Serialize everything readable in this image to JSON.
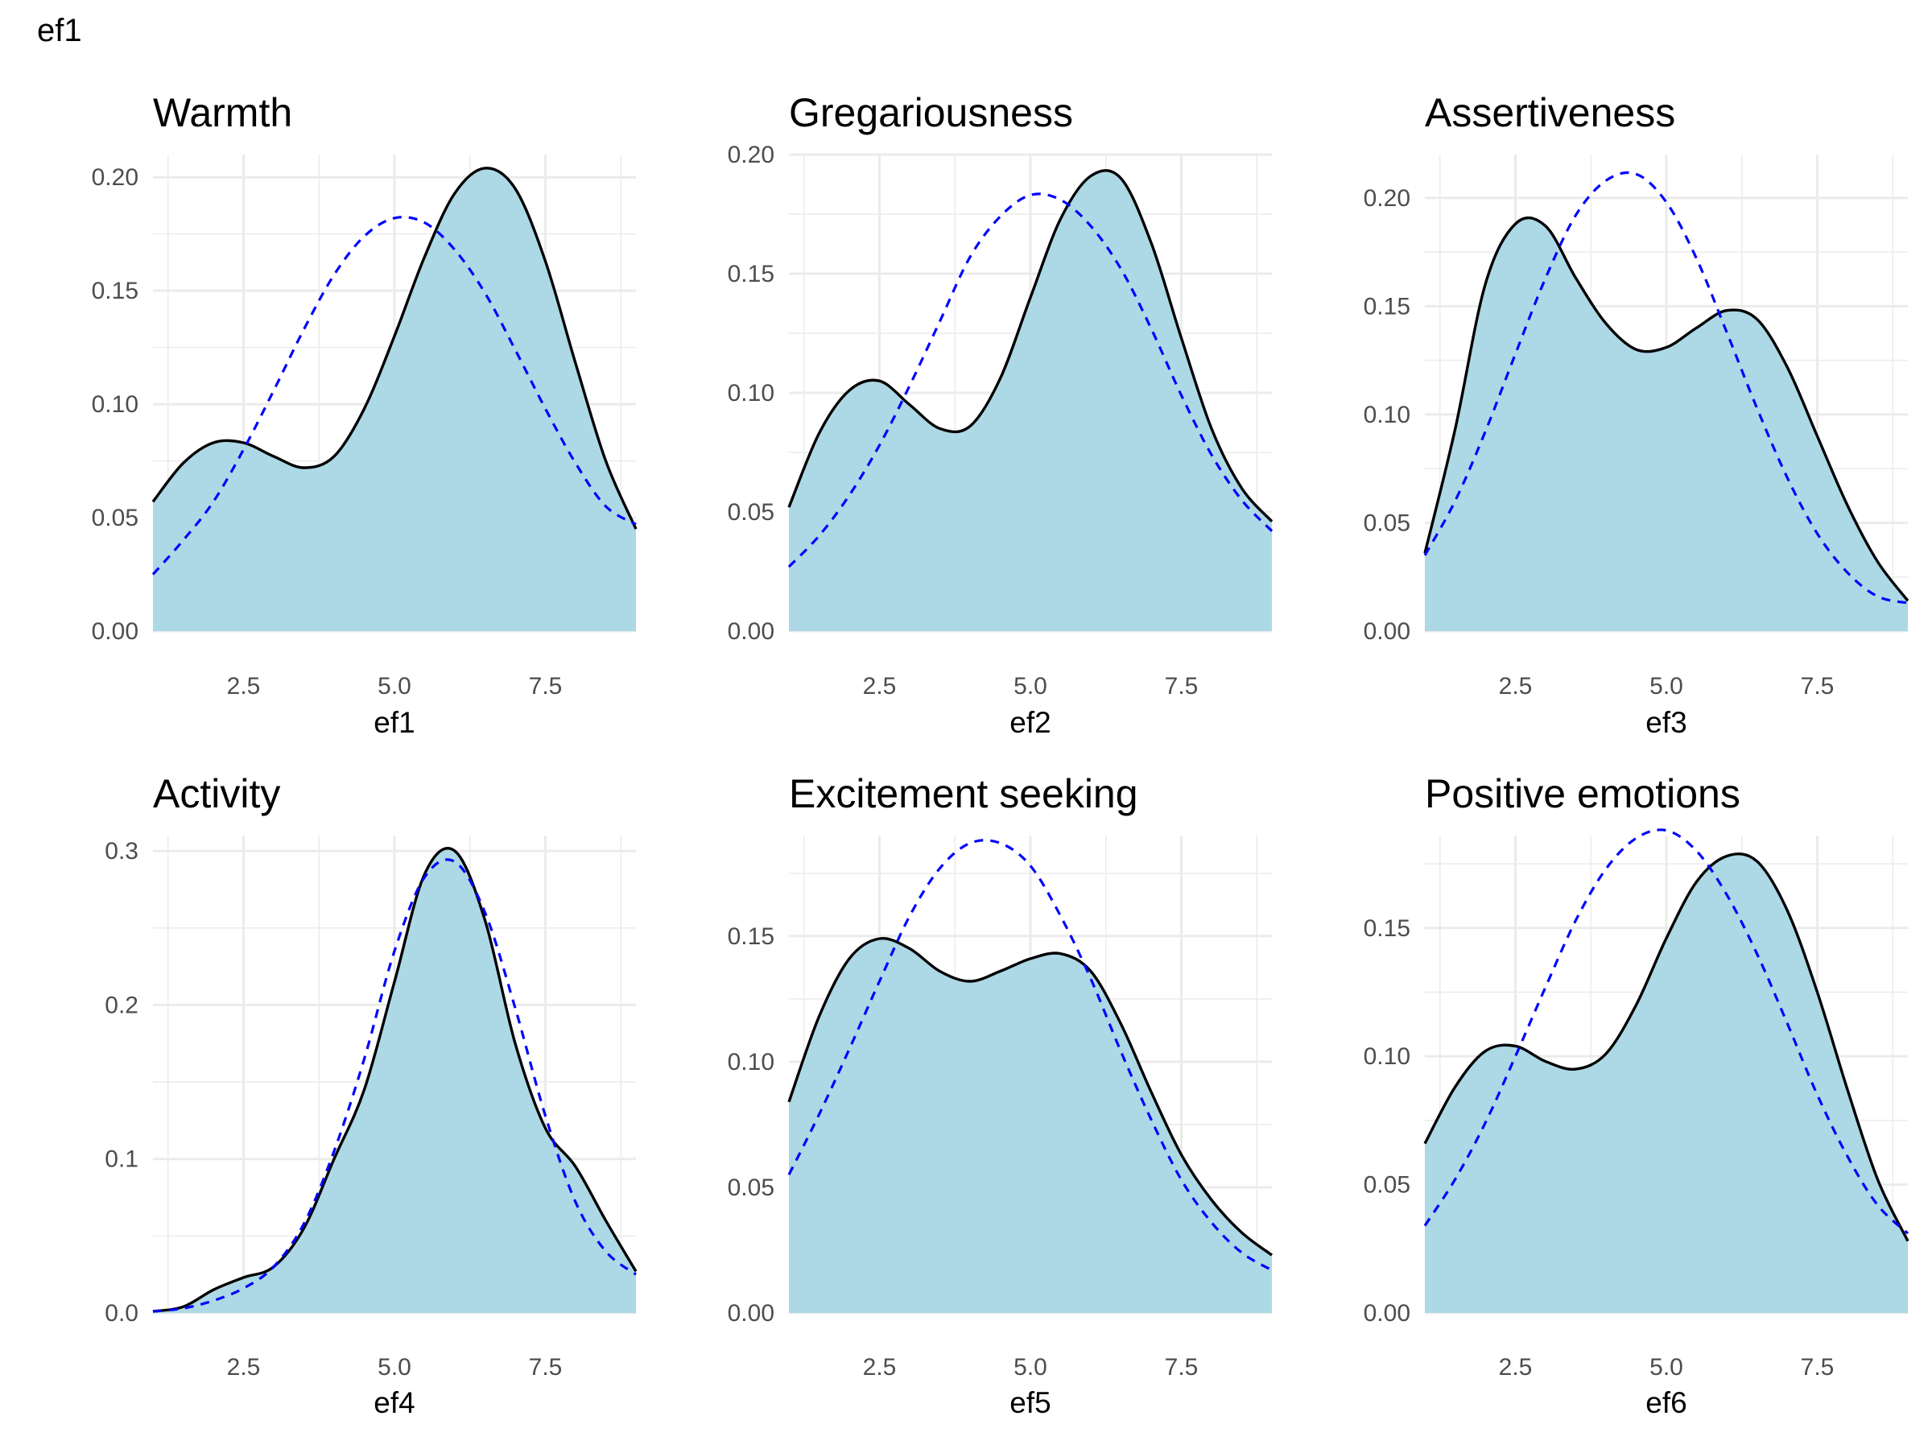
{
  "page": {
    "title": "ef1"
  },
  "style": {
    "fill_color": "#ADD8E6",
    "density_line_color": "#000000",
    "normal_line_color": "#0000FF",
    "grid_color": "#EBEBEB"
  },
  "chart_data": [
    {
      "type": "area",
      "title": "Warmth",
      "xlabel": "ef1",
      "xlim": [
        1,
        9
      ],
      "ylim": [
        0,
        0.21
      ],
      "xticks": [
        2.5,
        5.0,
        7.5
      ],
      "xtick_labels": [
        "2.5",
        "5.0",
        "7.5"
      ],
      "yticks": [
        0,
        0.05,
        0.1,
        0.15,
        0.2
      ],
      "ytick_labels": [
        "0.00",
        "0.05",
        "0.10",
        "0.15",
        "0.20"
      ],
      "series": [
        {
          "style": "solid area",
          "x": [
            1.0,
            1.5,
            2.0,
            2.5,
            3.0,
            3.5,
            4.0,
            4.5,
            5.0,
            5.5,
            6.0,
            6.5,
            7.0,
            7.5,
            8.0,
            8.5,
            9.0
          ],
          "y": [
            0.057,
            0.074,
            0.083,
            0.083,
            0.077,
            0.072,
            0.077,
            0.098,
            0.13,
            0.165,
            0.193,
            0.204,
            0.195,
            0.163,
            0.118,
            0.075,
            0.045
          ]
        },
        {
          "style": "dashed",
          "x": [
            1.0,
            1.5,
            2.0,
            2.5,
            3.0,
            3.5,
            4.0,
            4.5,
            5.0,
            5.5,
            6.0,
            6.5,
            7.0,
            7.5,
            8.0,
            8.5,
            9.0
          ],
          "y": [
            0.025,
            0.04,
            0.057,
            0.08,
            0.106,
            0.133,
            0.157,
            0.174,
            0.182,
            0.18,
            0.168,
            0.149,
            0.124,
            0.098,
            0.074,
            0.055,
            0.047
          ]
        }
      ]
    },
    {
      "type": "area",
      "title": "Gregariousness",
      "xlabel": "ef2",
      "xlim": [
        1,
        9
      ],
      "ylim": [
        0,
        0.2
      ],
      "xticks": [
        2.5,
        5.0,
        7.5
      ],
      "xtick_labels": [
        "2.5",
        "5.0",
        "7.5"
      ],
      "yticks": [
        0,
        0.05,
        0.1,
        0.15,
        0.2
      ],
      "ytick_labels": [
        "0.00",
        "0.05",
        "0.10",
        "0.15",
        "0.20"
      ],
      "series": [
        {
          "style": "solid area",
          "x": [
            1.0,
            1.5,
            2.0,
            2.5,
            3.0,
            3.5,
            4.0,
            4.5,
            5.0,
            5.5,
            6.0,
            6.5,
            7.0,
            7.5,
            8.0,
            8.5,
            9.0
          ],
          "y": [
            0.052,
            0.083,
            0.101,
            0.105,
            0.095,
            0.085,
            0.086,
            0.106,
            0.14,
            0.173,
            0.191,
            0.19,
            0.163,
            0.123,
            0.085,
            0.06,
            0.046
          ]
        },
        {
          "style": "dashed",
          "x": [
            1.0,
            1.5,
            2.0,
            2.5,
            3.0,
            3.5,
            4.0,
            4.5,
            5.0,
            5.5,
            6.0,
            6.5,
            7.0,
            7.5,
            8.0,
            8.5,
            9.0
          ],
          "y": [
            0.027,
            0.04,
            0.057,
            0.078,
            0.103,
            0.13,
            0.157,
            0.174,
            0.183,
            0.181,
            0.17,
            0.152,
            0.127,
            0.099,
            0.074,
            0.055,
            0.042
          ]
        }
      ]
    },
    {
      "type": "area",
      "title": "Assertiveness",
      "xlabel": "ef3",
      "xlim": [
        1,
        9
      ],
      "ylim": [
        0,
        0.22
      ],
      "xticks": [
        2.5,
        5.0,
        7.5
      ],
      "xtick_labels": [
        "2.5",
        "5.0",
        "7.5"
      ],
      "yticks": [
        0,
        0.05,
        0.1,
        0.15,
        0.2
      ],
      "ytick_labels": [
        "0.00",
        "0.05",
        "0.10",
        "0.15",
        "0.20"
      ],
      "series": [
        {
          "style": "solid area",
          "x": [
            1.0,
            1.5,
            2.0,
            2.5,
            3.0,
            3.5,
            4.0,
            4.5,
            5.0,
            5.5,
            6.0,
            6.5,
            7.0,
            7.5,
            8.0,
            8.5,
            9.0
          ],
          "y": [
            0.036,
            0.093,
            0.16,
            0.188,
            0.187,
            0.163,
            0.142,
            0.13,
            0.131,
            0.14,
            0.148,
            0.144,
            0.122,
            0.09,
            0.058,
            0.032,
            0.014
          ]
        },
        {
          "style": "dashed",
          "x": [
            1.0,
            1.5,
            2.0,
            2.5,
            3.0,
            3.5,
            4.0,
            4.5,
            5.0,
            5.5,
            6.0,
            6.5,
            7.0,
            7.5,
            8.0,
            8.5,
            9.0
          ],
          "y": [
            0.035,
            0.06,
            0.092,
            0.128,
            0.163,
            0.192,
            0.208,
            0.211,
            0.198,
            0.172,
            0.138,
            0.103,
            0.071,
            0.045,
            0.027,
            0.016,
            0.013
          ]
        }
      ]
    },
    {
      "type": "area",
      "title": "Activity",
      "xlabel": "ef4",
      "xlim": [
        1,
        9
      ],
      "ylim": [
        0,
        0.31
      ],
      "xticks": [
        2.5,
        5.0,
        7.5
      ],
      "xtick_labels": [
        "2.5",
        "5.0",
        "7.5"
      ],
      "yticks": [
        0,
        0.1,
        0.2,
        0.3
      ],
      "ytick_labels": [
        "0.0",
        "0.1",
        "0.2",
        "0.3"
      ],
      "series": [
        {
          "style": "solid area",
          "x": [
            1.0,
            1.5,
            2.0,
            2.5,
            3.0,
            3.5,
            4.0,
            4.5,
            5.0,
            5.5,
            6.0,
            6.5,
            7.0,
            7.5,
            8.0,
            8.5,
            9.0
          ],
          "y": [
            0.001,
            0.004,
            0.015,
            0.023,
            0.03,
            0.055,
            0.1,
            0.145,
            0.215,
            0.285,
            0.3,
            0.255,
            0.175,
            0.12,
            0.095,
            0.06,
            0.027
          ]
        },
        {
          "style": "dashed",
          "x": [
            1.0,
            1.5,
            2.0,
            2.5,
            3.0,
            3.5,
            4.0,
            4.5,
            5.0,
            5.5,
            6.0,
            6.5,
            7.0,
            7.5,
            8.0,
            8.5,
            9.0
          ],
          "y": [
            0.001,
            0.003,
            0.008,
            0.016,
            0.03,
            0.058,
            0.105,
            0.165,
            0.235,
            0.283,
            0.293,
            0.26,
            0.198,
            0.128,
            0.072,
            0.04,
            0.025
          ]
        }
      ]
    },
    {
      "type": "area",
      "title": "Excitement seeking",
      "xlabel": "ef5",
      "xlim": [
        1,
        9
      ],
      "ylim": [
        0,
        0.19
      ],
      "xticks": [
        2.5,
        5.0,
        7.5
      ],
      "xtick_labels": [
        "2.5",
        "5.0",
        "7.5"
      ],
      "yticks": [
        0,
        0.05,
        0.1,
        0.15
      ],
      "ytick_labels": [
        "0.00",
        "0.05",
        "0.10",
        "0.15"
      ],
      "series": [
        {
          "style": "solid area",
          "x": [
            1.0,
            1.5,
            2.0,
            2.5,
            3.0,
            3.5,
            4.0,
            4.5,
            5.0,
            5.5,
            6.0,
            6.5,
            7.0,
            7.5,
            8.0,
            8.5,
            9.0
          ],
          "y": [
            0.084,
            0.118,
            0.141,
            0.149,
            0.145,
            0.136,
            0.132,
            0.136,
            0.141,
            0.143,
            0.136,
            0.115,
            0.088,
            0.063,
            0.045,
            0.032,
            0.023
          ]
        },
        {
          "style": "dashed",
          "x": [
            1.0,
            1.5,
            2.0,
            2.5,
            3.0,
            3.5,
            4.0,
            4.5,
            5.0,
            5.5,
            6.0,
            6.5,
            7.0,
            7.5,
            8.0,
            8.5,
            9.0
          ],
          "y": [
            0.055,
            0.079,
            0.105,
            0.132,
            0.158,
            0.177,
            0.187,
            0.187,
            0.178,
            0.158,
            0.133,
            0.104,
            0.077,
            0.053,
            0.036,
            0.024,
            0.017
          ]
        }
      ]
    },
    {
      "type": "area",
      "title": "Positive emotions",
      "xlabel": "ef6",
      "xlim": [
        1,
        9
      ],
      "ylim": [
        0,
        0.186
      ],
      "xticks": [
        2.5,
        5.0,
        7.5
      ],
      "xtick_labels": [
        "2.5",
        "5.0",
        "7.5"
      ],
      "yticks": [
        0,
        0.05,
        0.1,
        0.15
      ],
      "ytick_labels": [
        "0.00",
        "0.05",
        "0.10",
        "0.15"
      ],
      "series": [
        {
          "style": "solid area",
          "x": [
            1.0,
            1.5,
            2.0,
            2.5,
            3.0,
            3.5,
            4.0,
            4.5,
            5.0,
            5.5,
            6.0,
            6.5,
            7.0,
            7.5,
            8.0,
            8.5,
            9.0
          ],
          "y": [
            0.066,
            0.088,
            0.102,
            0.104,
            0.098,
            0.095,
            0.101,
            0.12,
            0.146,
            0.168,
            0.178,
            0.176,
            0.157,
            0.125,
            0.087,
            0.052,
            0.028
          ]
        },
        {
          "style": "dashed",
          "x": [
            1.0,
            1.5,
            2.0,
            2.5,
            3.0,
            3.5,
            4.0,
            4.5,
            5.0,
            5.5,
            6.0,
            6.5,
            7.0,
            7.5,
            8.0,
            8.5,
            9.0
          ],
          "y": [
            0.034,
            0.052,
            0.074,
            0.1,
            0.127,
            0.153,
            0.173,
            0.185,
            0.188,
            0.18,
            0.163,
            0.14,
            0.113,
            0.085,
            0.061,
            0.042,
            0.031
          ]
        }
      ]
    }
  ]
}
